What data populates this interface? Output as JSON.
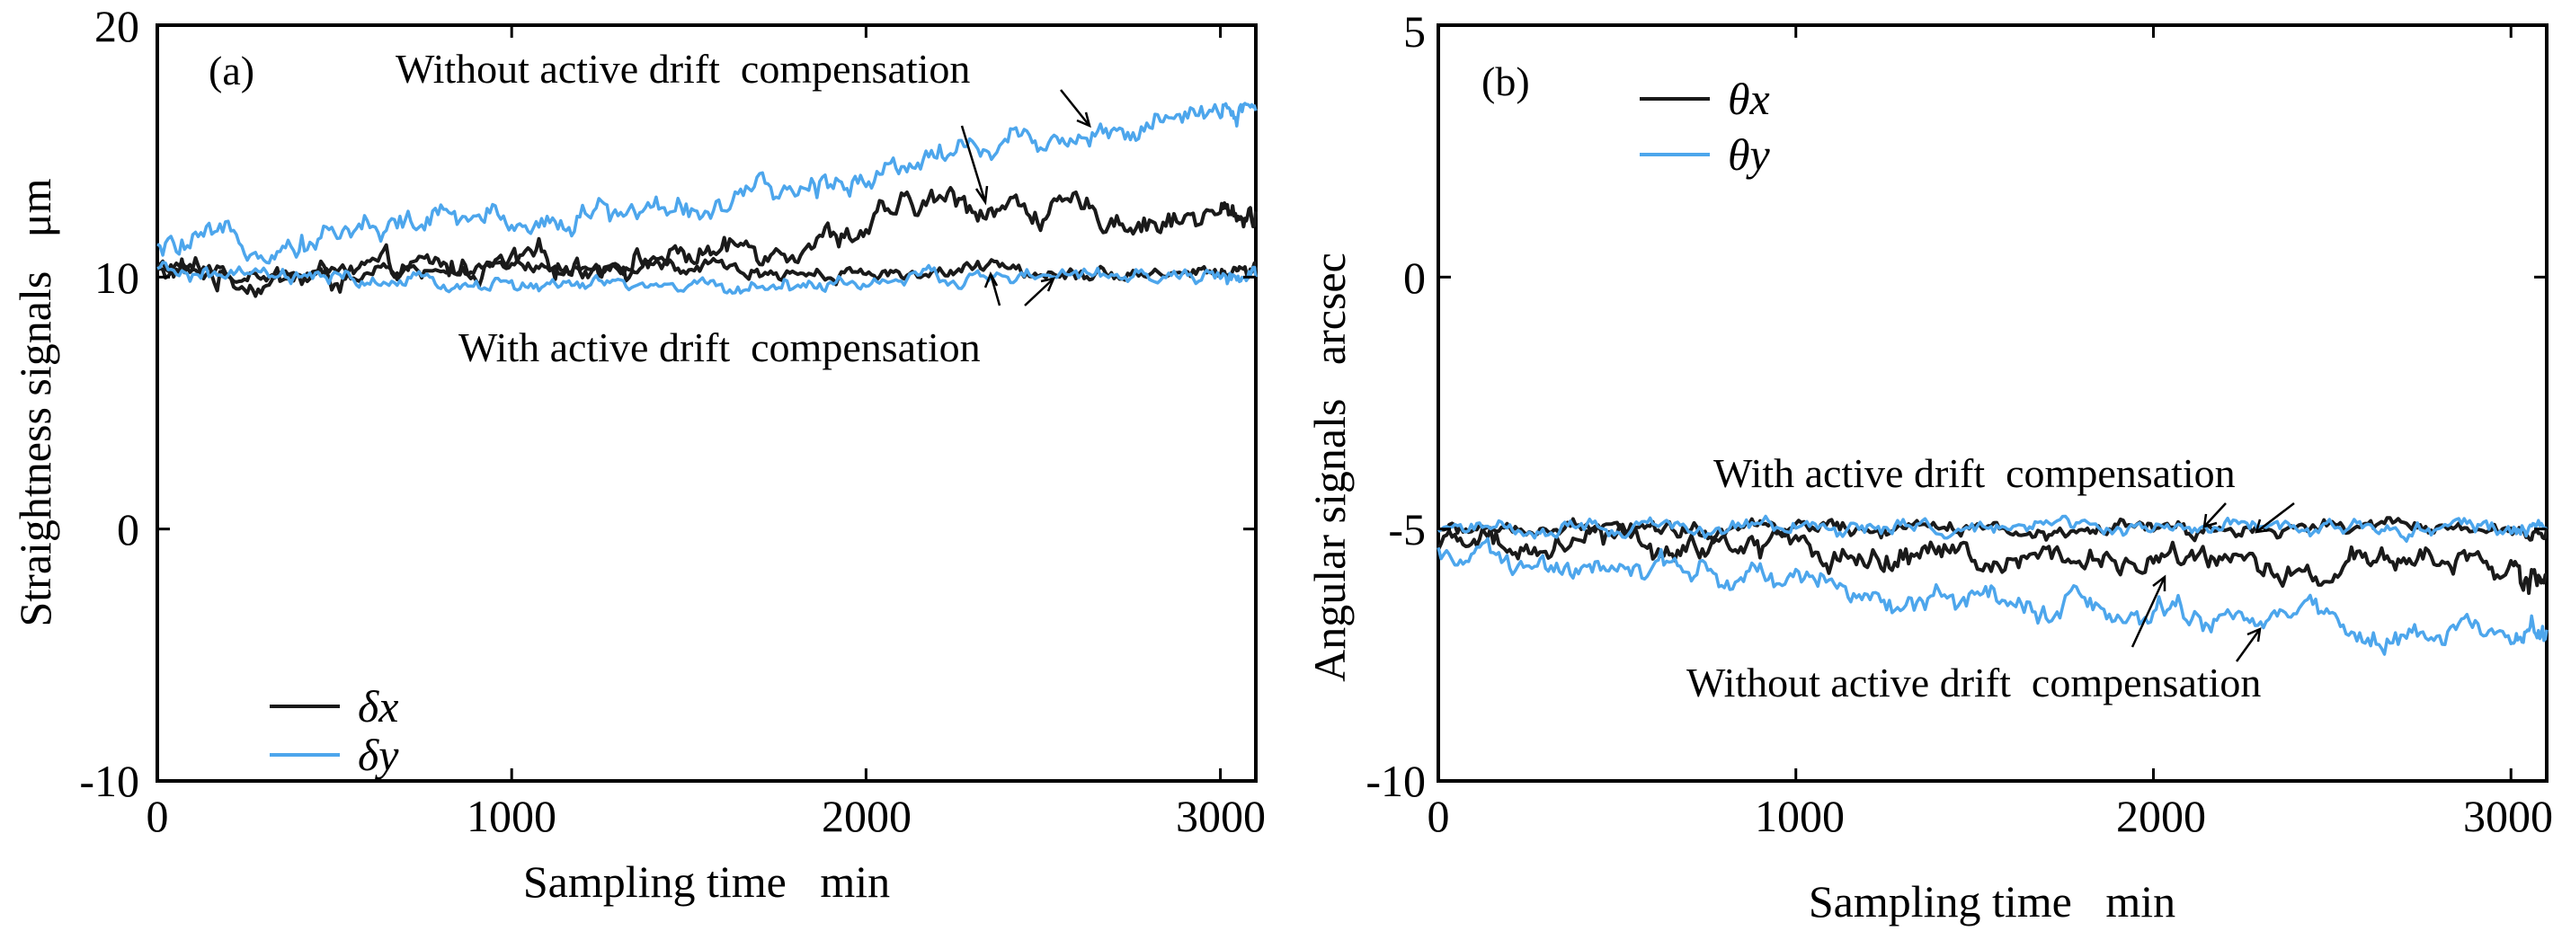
{
  "chart_data": [
    {
      "type": "line",
      "panel_tag": "(a)",
      "xlabel": "Sampling time   min",
      "ylabel": "Straightness signals   μm",
      "xlim": [
        0,
        3100
      ],
      "ylim": [
        -10,
        20
      ],
      "xticks": [
        "0",
        "1000",
        "2000",
        "3000"
      ],
      "yticks": [
        "-10",
        "0",
        "10",
        "20"
      ],
      "legend_position": "bottom-left",
      "annotations": [
        "Without active drift  compensation",
        "With active drift  compensation"
      ],
      "series": [
        {
          "name": "δx",
          "group": "without compensation",
          "color": "#1a1a1a",
          "x": [
            0,
            200,
            400,
            600,
            800,
            1000,
            1200,
            1400,
            1600,
            1800,
            2000,
            2200,
            2400,
            2600,
            2800,
            3000,
            3100
          ],
          "y": [
            10.3,
            10.0,
            9.9,
            10.1,
            10.3,
            10.4,
            10.6,
            10.8,
            11.0,
            11.5,
            12.0,
            13.0,
            12.8,
            12.5,
            12.3,
            12.4,
            12.6
          ]
        },
        {
          "name": "δx",
          "group": "with compensation",
          "color": "#1a1a1a",
          "x": [
            0,
            200,
            400,
            600,
            800,
            1000,
            1200,
            1400,
            1600,
            1800,
            2000,
            2200,
            2400,
            2600,
            2800,
            3000,
            3100
          ],
          "y": [
            10.3,
            10.1,
            10.0,
            10.2,
            10.3,
            10.2,
            10.2,
            10.3,
            10.3,
            10.2,
            10.2,
            10.2,
            10.3,
            10.3,
            10.2,
            10.2,
            10.3
          ]
        },
        {
          "name": "δy",
          "group": "without compensation",
          "color": "#4da6ec",
          "x": [
            0,
            200,
            400,
            600,
            800,
            1000,
            1200,
            1400,
            1600,
            1800,
            2000,
            2200,
            2400,
            2600,
            2800,
            3000,
            3100
          ],
          "y": [
            11.0,
            11.3,
            11.6,
            12.0,
            12.2,
            12.3,
            12.5,
            12.7,
            12.9,
            13.3,
            14.2,
            15.0,
            15.4,
            15.8,
            15.9,
            16.3,
            16.6
          ]
        },
        {
          "name": "δy",
          "group": "with compensation",
          "color": "#4da6ec",
          "x": [
            0,
            200,
            400,
            600,
            800,
            1000,
            1200,
            1400,
            1600,
            1800,
            2000,
            2200,
            2400,
            2600,
            2800,
            3000,
            3100
          ],
          "y": [
            10.2,
            10.0,
            9.9,
            9.8,
            9.7,
            9.7,
            9.6,
            9.6,
            9.6,
            9.7,
            9.8,
            9.9,
            10.0,
            10.0,
            10.0,
            10.0,
            10.0
          ]
        }
      ]
    },
    {
      "type": "line",
      "panel_tag": "(b)",
      "xlabel": "Sampling time   min",
      "ylabel": "Angular signals   arcsec",
      "xlim": [
        0,
        3100
      ],
      "ylim": [
        -10,
        5
      ],
      "xticks": [
        "0",
        "1000",
        "2000",
        "3000"
      ],
      "yticks": [
        "-10",
        "-5",
        "0",
        "5"
      ],
      "legend_position": "top-left",
      "annotations": [
        "With active drift  compensation",
        "Without active drift  compensation"
      ],
      "series": [
        {
          "name": "θx",
          "group": "without compensation",
          "color": "#1a1a1a",
          "x": [
            0,
            200,
            400,
            600,
            800,
            1000,
            1200,
            1400,
            1600,
            1800,
            2000,
            2200,
            2400,
            2600,
            2800,
            3000,
            3100
          ],
          "y": [
            -5.2,
            -5.3,
            -5.3,
            -5.4,
            -5.4,
            -5.4,
            -5.5,
            -5.5,
            -5.5,
            -5.5,
            -5.6,
            -5.6,
            -5.7,
            -5.7,
            -5.7,
            -5.8,
            -5.9
          ]
        },
        {
          "name": "θx",
          "group": "with compensation",
          "color": "#1a1a1a",
          "x": [
            0,
            200,
            400,
            600,
            800,
            1000,
            1200,
            1400,
            1600,
            1800,
            2000,
            2200,
            2400,
            2600,
            2800,
            3000,
            3100
          ],
          "y": [
            -5.0,
            -5.0,
            -5.0,
            -5.0,
            -5.0,
            -5.0,
            -5.0,
            -5.0,
            -5.0,
            -5.0,
            -5.0,
            -5.0,
            -5.0,
            -5.0,
            -5.0,
            -5.0,
            -5.0
          ]
        },
        {
          "name": "θy",
          "group": "without compensation",
          "color": "#4da6ec",
          "x": [
            0,
            200,
            400,
            600,
            800,
            1000,
            1200,
            1400,
            1600,
            1800,
            2000,
            2200,
            2400,
            2600,
            2800,
            3000,
            3100
          ],
          "y": [
            -5.3,
            -5.5,
            -5.7,
            -5.8,
            -6.0,
            -6.1,
            -6.2,
            -6.3,
            -6.4,
            -6.5,
            -6.6,
            -6.7,
            -6.8,
            -6.9,
            -6.9,
            -7.0,
            -7.0
          ]
        },
        {
          "name": "θy",
          "group": "with compensation",
          "color": "#4da6ec",
          "x": [
            0,
            200,
            400,
            600,
            800,
            1000,
            1200,
            1400,
            1600,
            1800,
            2000,
            2200,
            2400,
            2600,
            2800,
            3000,
            3100
          ],
          "y": [
            -5.0,
            -4.95,
            -5.0,
            -4.95,
            -5.0,
            -4.95,
            -5.0,
            -4.95,
            -5.0,
            -4.95,
            -5.0,
            -4.9,
            -4.95,
            -4.95,
            -4.95,
            -4.95,
            -5.0
          ]
        }
      ]
    }
  ]
}
